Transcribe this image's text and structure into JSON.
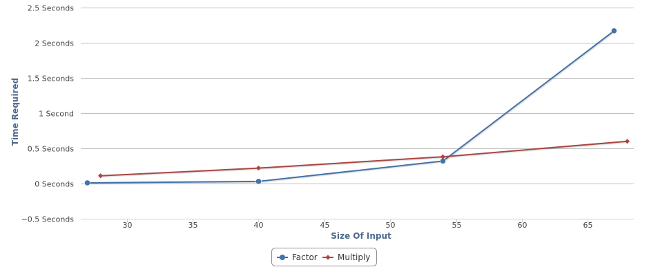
{
  "chart_data": {
    "type": "line",
    "title": "",
    "xlabel": "Size Of Input",
    "ylabel": "Time Required",
    "xlim": [
      26.5,
      68.5
    ],
    "ylim": [
      -0.5,
      2.5
    ],
    "x_ticks": [
      30,
      35,
      40,
      45,
      50,
      55,
      60,
      65
    ],
    "x_tick_labels": [
      "30",
      "35",
      "40",
      "45",
      "50",
      "55",
      "60",
      "65"
    ],
    "y_ticks": [
      -0.5,
      0,
      0.5,
      1,
      1.5,
      2,
      2.5
    ],
    "y_tick_labels": [
      "−0.5 Seconds",
      "0 Seconds",
      "0.5 Seconds",
      "1 Second",
      "1.5 Seconds",
      "2 Seconds",
      "2.5 Seconds"
    ],
    "grid": true,
    "legend_position": "bottom-center",
    "series": [
      {
        "name": "Factor",
        "color": "#4572a7",
        "marker": "circle",
        "points": [
          {
            "x": 27,
            "y": 0.01
          },
          {
            "x": 40,
            "y": 0.03
          },
          {
            "x": 54,
            "y": 0.32
          },
          {
            "x": 67,
            "y": 2.17
          }
        ]
      },
      {
        "name": "Multiply",
        "color": "#aa4643",
        "marker": "diamond",
        "points": [
          {
            "x": 28,
            "y": 0.11
          },
          {
            "x": 40,
            "y": 0.22
          },
          {
            "x": 54,
            "y": 0.38
          },
          {
            "x": 68,
            "y": 0.6
          }
        ]
      }
    ]
  }
}
